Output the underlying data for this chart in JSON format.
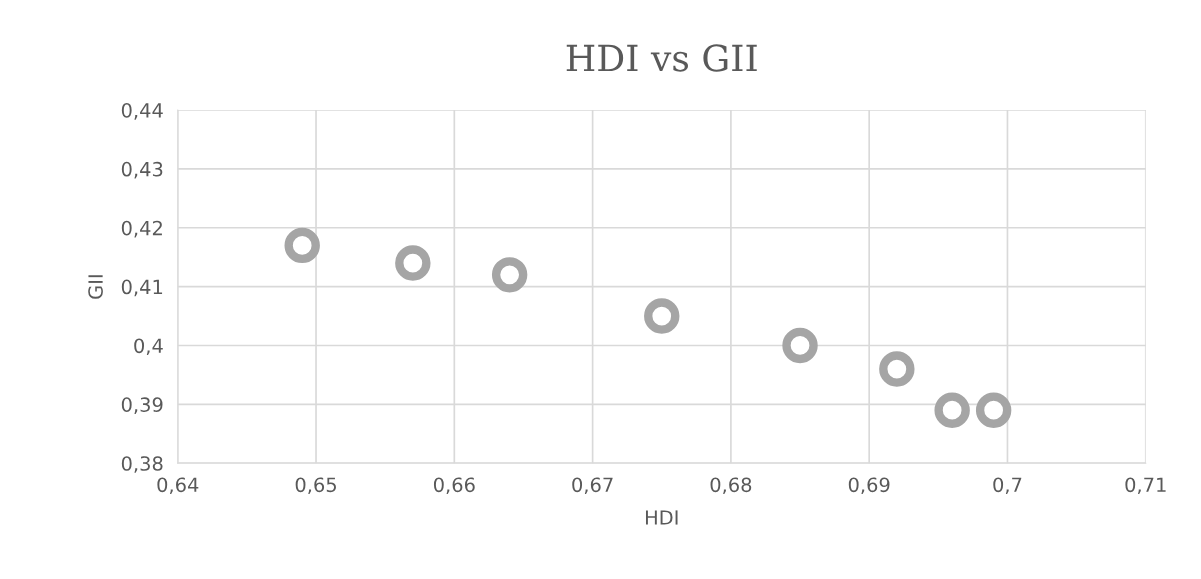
{
  "chart_data": {
    "type": "scatter",
    "title": "HDI vs GII",
    "xlabel": "HDI",
    "ylabel": "GII",
    "x": [
      0.649,
      0.657,
      0.664,
      0.675,
      0.685,
      0.692,
      0.696,
      0.699
    ],
    "series": [
      {
        "color": "#a5a5a5",
        "values": [
          0.417,
          0.414,
          0.412,
          0.405,
          0.4,
          0.396,
          0.389,
          0.389
        ]
      }
    ],
    "xlim": [
      0.64,
      0.71
    ],
    "xticks": [
      {
        "value": 0.64,
        "label": "0,64"
      },
      {
        "value": 0.65,
        "label": "0,65"
      },
      {
        "value": 0.66,
        "label": "0,66"
      },
      {
        "value": 0.67,
        "label": "0,67"
      },
      {
        "value": 0.68,
        "label": "0,68"
      },
      {
        "value": 0.69,
        "label": "0,69"
      },
      {
        "value": 0.7,
        "label": "0,7"
      },
      {
        "value": 0.71,
        "label": "0,71"
      }
    ],
    "ylim": [
      0.38,
      0.44
    ],
    "yticks": [
      {
        "value": 0.38,
        "label": "0,38"
      },
      {
        "value": 0.39,
        "label": "0,39"
      },
      {
        "value": 0.4,
        "label": "0,4"
      },
      {
        "value": 0.41,
        "label": "0,41"
      },
      {
        "value": 0.42,
        "label": "0,42"
      },
      {
        "value": 0.43,
        "label": "0,43"
      },
      {
        "value": 0.44,
        "label": "0,44"
      }
    ],
    "grid": true,
    "marker": "circle",
    "legend": false
  }
}
